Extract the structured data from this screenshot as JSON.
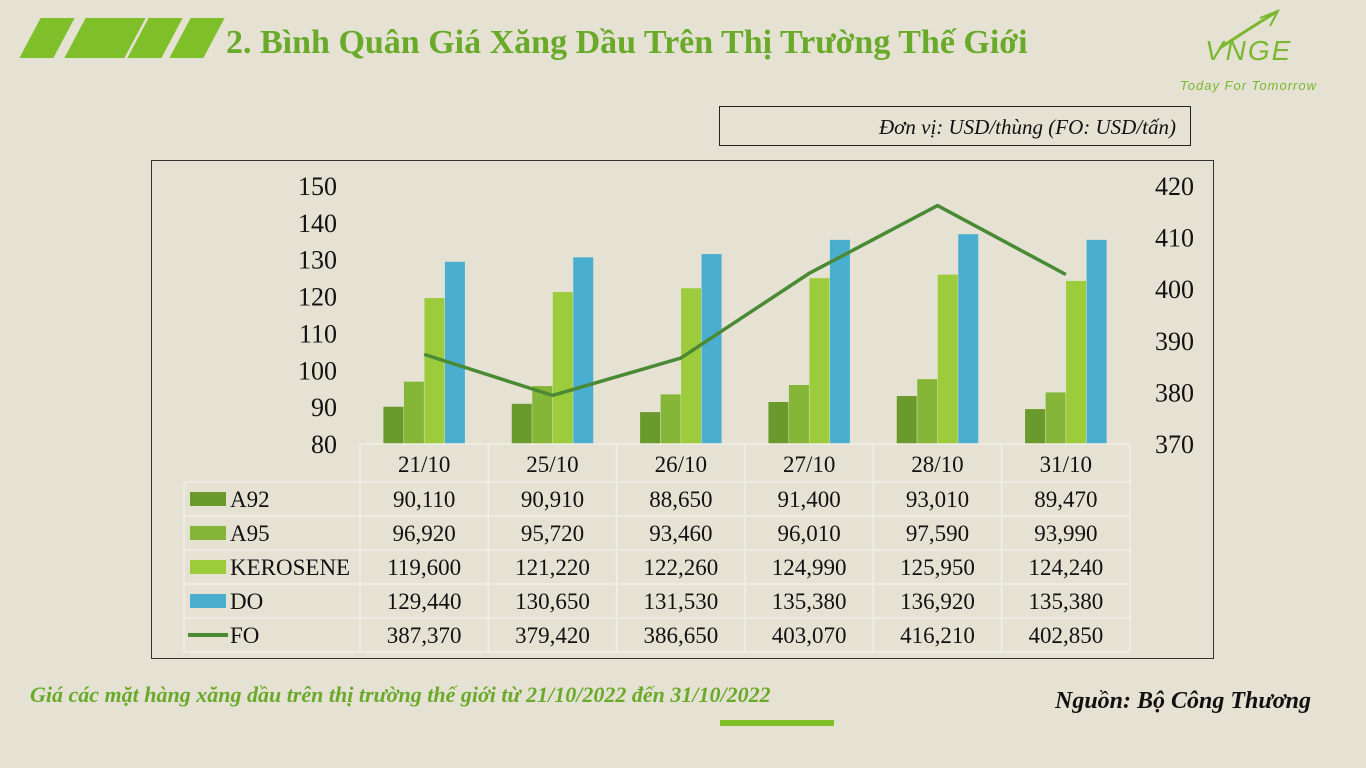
{
  "header": {
    "title": "2. Bình Quân Giá Xăng Dầu Trên Thị Trường Thế Giới",
    "logo_text": "VNGE",
    "logo_tagline": "Today For Tomorrow"
  },
  "unit_label": "Đơn vị: USD/thùng (FO: USD/tấn)",
  "footer": {
    "caption": "Giá các mặt hàng xăng dầu trên thị trường thế giới từ 21/10/2022 đến 31/10/2022",
    "source": "Nguồn: Bộ Công Thương"
  },
  "colors": {
    "accent": "#7fbf2a",
    "A92": "#6b9a2c",
    "A95": "#85b637",
    "KEROSENE": "#9ccc3c",
    "DO": "#4aaed0",
    "FO": "#4a8a35"
  },
  "chart_data": {
    "type": "bar",
    "categories": [
      "21/10",
      "25/10",
      "26/10",
      "27/10",
      "28/10",
      "31/10"
    ],
    "series": [
      {
        "name": "A92",
        "type": "bar",
        "axis": "left",
        "values": [
          90.11,
          90.91,
          88.65,
          91.4,
          93.01,
          89.47
        ],
        "labels": [
          "90,110",
          "90,910",
          "88,650",
          "91,400",
          "93,010",
          "89,470"
        ]
      },
      {
        "name": "A95",
        "type": "bar",
        "axis": "left",
        "values": [
          96.92,
          95.72,
          93.46,
          96.01,
          97.59,
          93.99
        ],
        "labels": [
          "96,920",
          "95,720",
          "93,460",
          "96,010",
          "97,590",
          "93,990"
        ]
      },
      {
        "name": "KEROSENE",
        "type": "bar",
        "axis": "left",
        "values": [
          119.6,
          121.22,
          122.26,
          124.99,
          125.95,
          124.24
        ],
        "labels": [
          "119,600",
          "121,220",
          "122,260",
          "124,990",
          "125,950",
          "124,240"
        ]
      },
      {
        "name": "DO",
        "type": "bar",
        "axis": "left",
        "values": [
          129.44,
          130.65,
          131.53,
          135.38,
          136.92,
          135.38
        ],
        "labels": [
          "129,440",
          "130,650",
          "131,530",
          "135,380",
          "136,920",
          "135,380"
        ]
      },
      {
        "name": "FO",
        "type": "line",
        "axis": "right",
        "values": [
          387.37,
          379.42,
          386.65,
          403.07,
          416.21,
          402.85
        ],
        "labels": [
          "387,370",
          "379,420",
          "386,650",
          "403,070",
          "416,210",
          "402,850"
        ]
      }
    ],
    "ylim": [
      80,
      150
    ],
    "y_ticks": [
      "80",
      "90",
      "100",
      "110",
      "120",
      "130",
      "140",
      "150"
    ],
    "y2lim": [
      370,
      420
    ],
    "y2_ticks": [
      "370",
      "380",
      "390",
      "400",
      "410",
      "420"
    ],
    "grid": false,
    "legend": "data-table"
  }
}
